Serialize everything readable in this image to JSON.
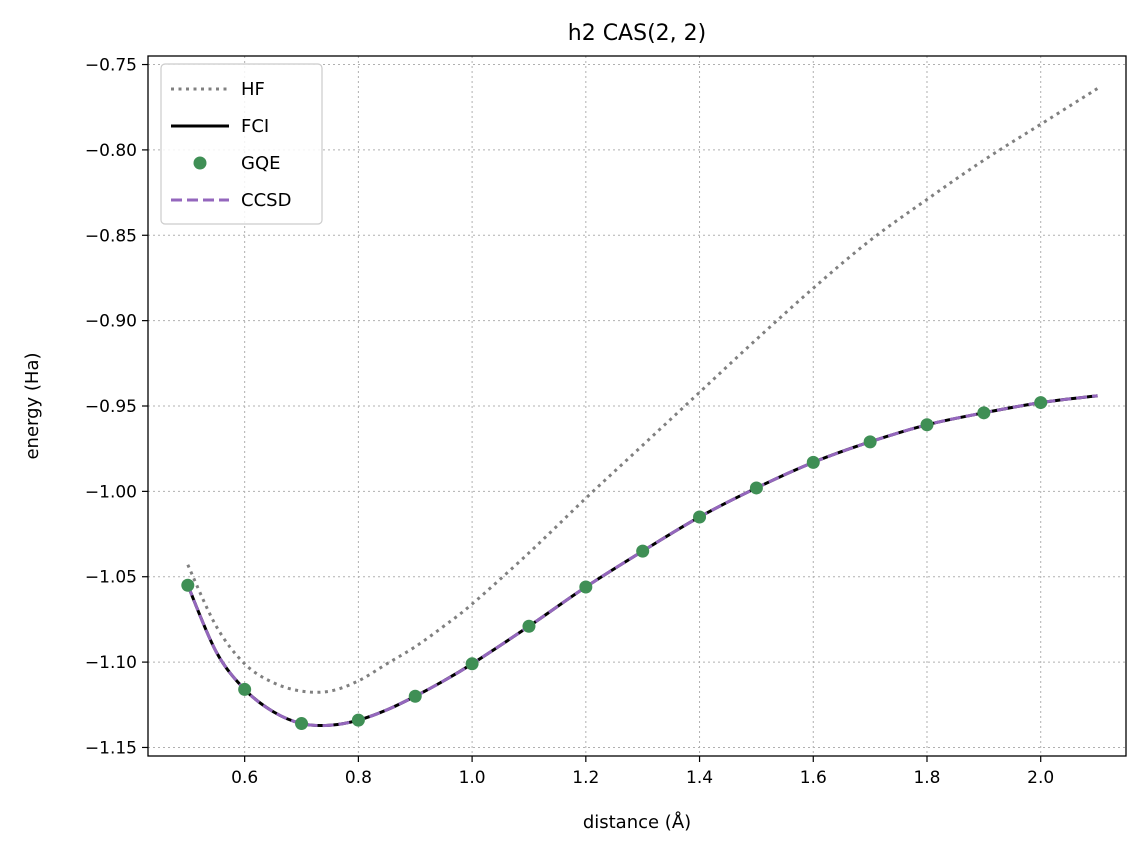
{
  "chart_data": {
    "type": "line",
    "title": "h2 CAS(2, 2)",
    "xlabel": "distance (Å)",
    "ylabel": "energy (Ha)",
    "xlim": [
      0.43,
      2.15
    ],
    "ylim": [
      -1.155,
      -0.745
    ],
    "x_ticks": [
      0.6,
      0.8,
      1.0,
      1.2,
      1.4,
      1.6,
      1.8,
      2.0
    ],
    "x_tick_labels": [
      "0.6",
      "0.8",
      "1.0",
      "1.2",
      "1.4",
      "1.6",
      "1.8",
      "2.0"
    ],
    "y_ticks": [
      -1.15,
      -1.1,
      -1.05,
      -1.0,
      -0.95,
      -0.9,
      -0.85,
      -0.8,
      -0.75
    ],
    "y_tick_labels": [
      "−1.15",
      "−1.10",
      "−1.05",
      "−1.00",
      "−0.95",
      "−0.90",
      "−0.85",
      "−0.80",
      "−0.75"
    ],
    "grid": true,
    "legend_position": "top-left",
    "series": [
      {
        "name": "HF",
        "style": "dotted",
        "color": "#808080",
        "x": [
          0.5,
          0.55,
          0.6,
          0.65,
          0.7,
          0.75,
          0.8,
          0.85,
          0.9,
          0.95,
          1.0,
          1.1,
          1.2,
          1.3,
          1.4,
          1.5,
          1.6,
          1.7,
          1.8,
          1.9,
          2.0,
          2.1
        ],
        "y": [
          -1.043,
          -1.079,
          -1.101,
          -1.112,
          -1.117,
          -1.117,
          -1.111,
          -1.101,
          -1.091,
          -1.079,
          -1.066,
          -1.036,
          -1.004,
          -0.973,
          -0.942,
          -0.911,
          -0.881,
          -0.853,
          -0.829,
          -0.806,
          -0.785,
          -0.764
        ]
      },
      {
        "name": "FCI",
        "style": "solid",
        "color": "#000000",
        "x": [
          0.5,
          0.55,
          0.6,
          0.65,
          0.7,
          0.75,
          0.8,
          0.85,
          0.9,
          0.95,
          1.0,
          1.1,
          1.2,
          1.3,
          1.4,
          1.5,
          1.6,
          1.7,
          1.8,
          1.9,
          2.0,
          2.1
        ],
        "y": [
          -1.055,
          -1.094,
          -1.116,
          -1.129,
          -1.136,
          -1.137,
          -1.134,
          -1.128,
          -1.12,
          -1.111,
          -1.101,
          -1.079,
          -1.056,
          -1.035,
          -1.015,
          -0.998,
          -0.983,
          -0.971,
          -0.961,
          -0.954,
          -0.948,
          -0.944
        ]
      },
      {
        "name": "GQE",
        "style": "markers",
        "color": "#3f8f55",
        "x": [
          0.5,
          0.6,
          0.7,
          0.8,
          0.9,
          1.0,
          1.1,
          1.2,
          1.3,
          1.4,
          1.5,
          1.6,
          1.7,
          1.8,
          1.9,
          2.0
        ],
        "y": [
          -1.055,
          -1.116,
          -1.136,
          -1.134,
          -1.12,
          -1.101,
          -1.079,
          -1.056,
          -1.035,
          -1.015,
          -0.998,
          -0.983,
          -0.971,
          -0.961,
          -0.954,
          -0.948
        ]
      },
      {
        "name": "CCSD",
        "style": "dashed",
        "color": "#9467bd",
        "x": [
          0.5,
          0.55,
          0.6,
          0.65,
          0.7,
          0.75,
          0.8,
          0.85,
          0.9,
          0.95,
          1.0,
          1.1,
          1.2,
          1.3,
          1.4,
          1.5,
          1.6,
          1.7,
          1.8,
          1.9,
          2.0,
          2.1
        ],
        "y": [
          -1.055,
          -1.094,
          -1.116,
          -1.129,
          -1.136,
          -1.137,
          -1.134,
          -1.128,
          -1.12,
          -1.111,
          -1.101,
          -1.079,
          -1.056,
          -1.035,
          -1.015,
          -0.998,
          -0.983,
          -0.971,
          -0.961,
          -0.954,
          -0.948,
          -0.944
        ]
      }
    ]
  }
}
